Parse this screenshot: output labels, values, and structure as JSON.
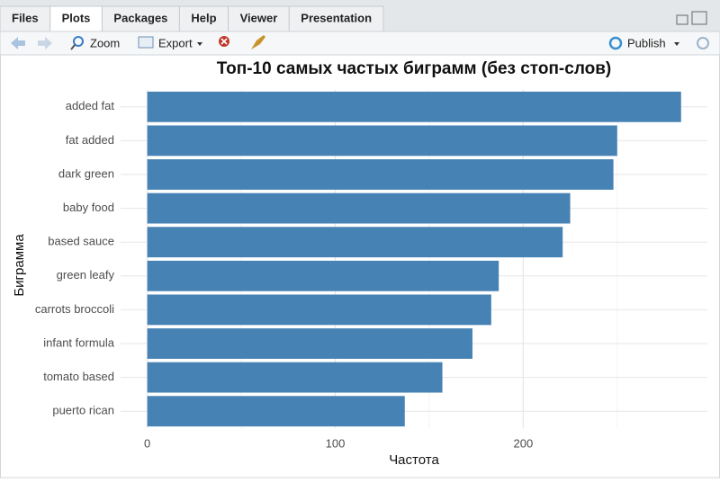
{
  "tabs": [
    "Files",
    "Plots",
    "Packages",
    "Help",
    "Viewer",
    "Presentation"
  ],
  "active_tab": 1,
  "toolbar": {
    "zoom": "Zoom",
    "export": "Export",
    "publish": "Publish"
  },
  "chart_data": {
    "type": "barh",
    "title": "Топ-10 самых частых биграмм (без стоп-слов)",
    "x_label": "Частота",
    "y_label": "Биграмма",
    "categories": [
      "added fat",
      "fat added",
      "dark green",
      "baby food",
      "based sauce",
      "green leafy",
      "carrots broccoli",
      "infant formula",
      "tomato based",
      "puerto rican"
    ],
    "values": [
      284,
      250,
      248,
      225,
      221,
      187,
      183,
      173,
      157,
      137
    ],
    "color": "#4682b4",
    "xlim": [
      -14.2,
      298
    ],
    "xticks": [
      0,
      100,
      200
    ],
    "xminor": [
      50,
      150,
      250
    ],
    "grid": true
  }
}
